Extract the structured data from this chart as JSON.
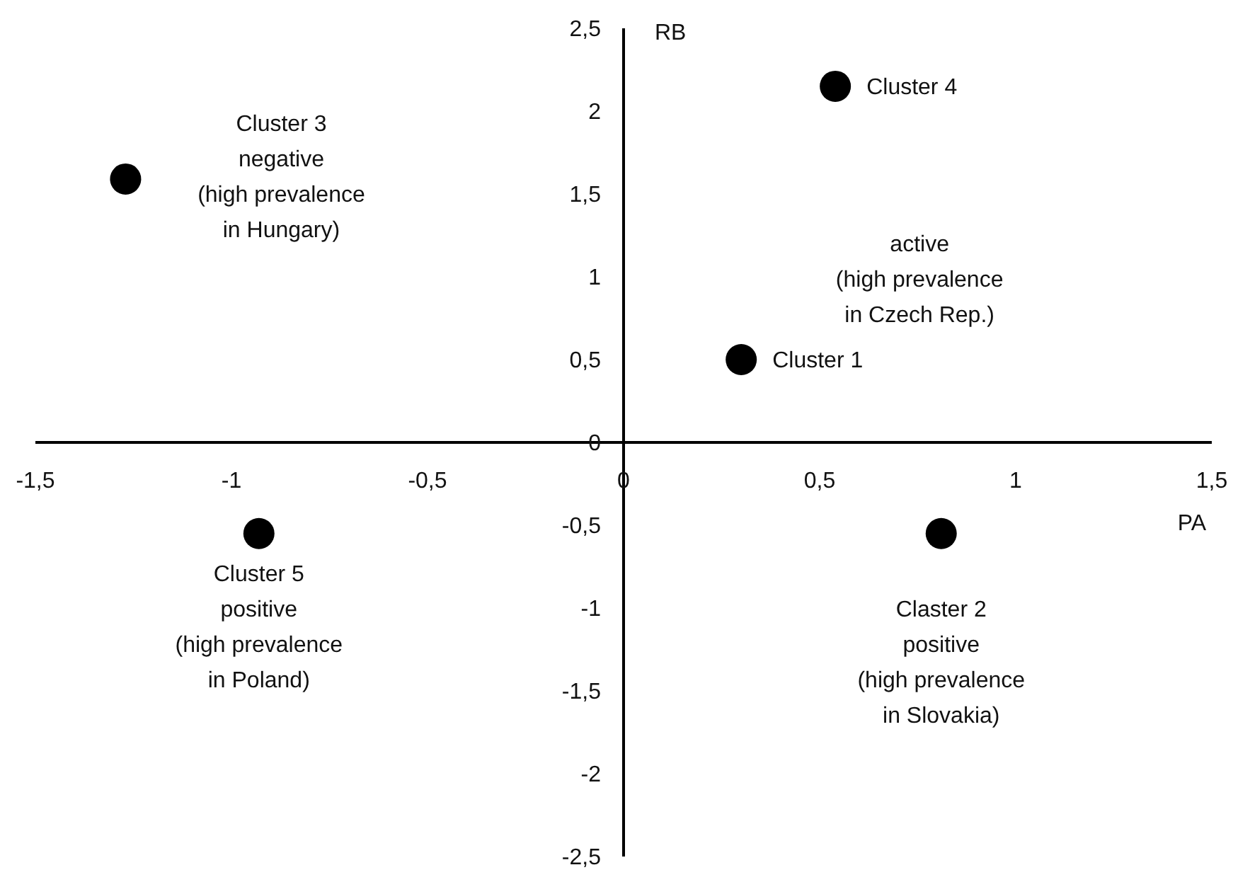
{
  "chart_data": {
    "type": "scatter",
    "xlabel": "PA",
    "ylabel": "RB",
    "series": [
      {
        "color": "#000000",
        "x": [
          0.54,
          -1.27,
          0.3,
          -0.93,
          0.81
        ],
        "values": [
          2.15,
          1.59,
          0.5,
          -0.55,
          -0.55
        ]
      }
    ],
    "marker": "circle",
    "grid": false,
    "xlim": [
      -1.5,
      1.5
    ],
    "ylim": [
      -2.5,
      2.5
    ],
    "xticks": [
      {
        "value": -1.5,
        "label": "-1,5"
      },
      -1,
      {
        "value": -0.5,
        "label": "-0,5"
      },
      0,
      {
        "value": 0.5,
        "label": "0,5"
      },
      1,
      {
        "value": 1.5,
        "label": "1,5"
      }
    ],
    "yticks": [
      {
        "value": -2.5,
        "label": "-2,5"
      },
      -2,
      {
        "value": -1.5,
        "label": "-1,5"
      },
      -1,
      {
        "value": -0.5,
        "label": "-0,5"
      },
      0,
      {
        "value": 0.5,
        "label": "0,5"
      },
      1,
      {
        "value": 1.5,
        "label": "1,5"
      },
      2,
      {
        "value": 2.5,
        "label": "2,5"
      }
    ],
    "annotations": [
      {
        "text": "Cluster 4",
        "x": 0.54,
        "y": 2.15
      },
      "active\n(high prevalence\nin Czech Rep.)",
      "Cluster 3\nnegative\n(high prevalence\nin Hungary)",
      {
        "text": "Cluster 1",
        "x": 0.3,
        "y": 0.5
      },
      {
        "text": "Cluster 5\npositive\n(high prevalence\nin Poland)",
        "x": -0.93,
        "y": -0.55
      },
      {
        "text": "Claster 2\npositive\n(high prevalence\nin Slovakia)",
        "x": 0.81,
        "y": -0.55
      }
    ]
  }
}
